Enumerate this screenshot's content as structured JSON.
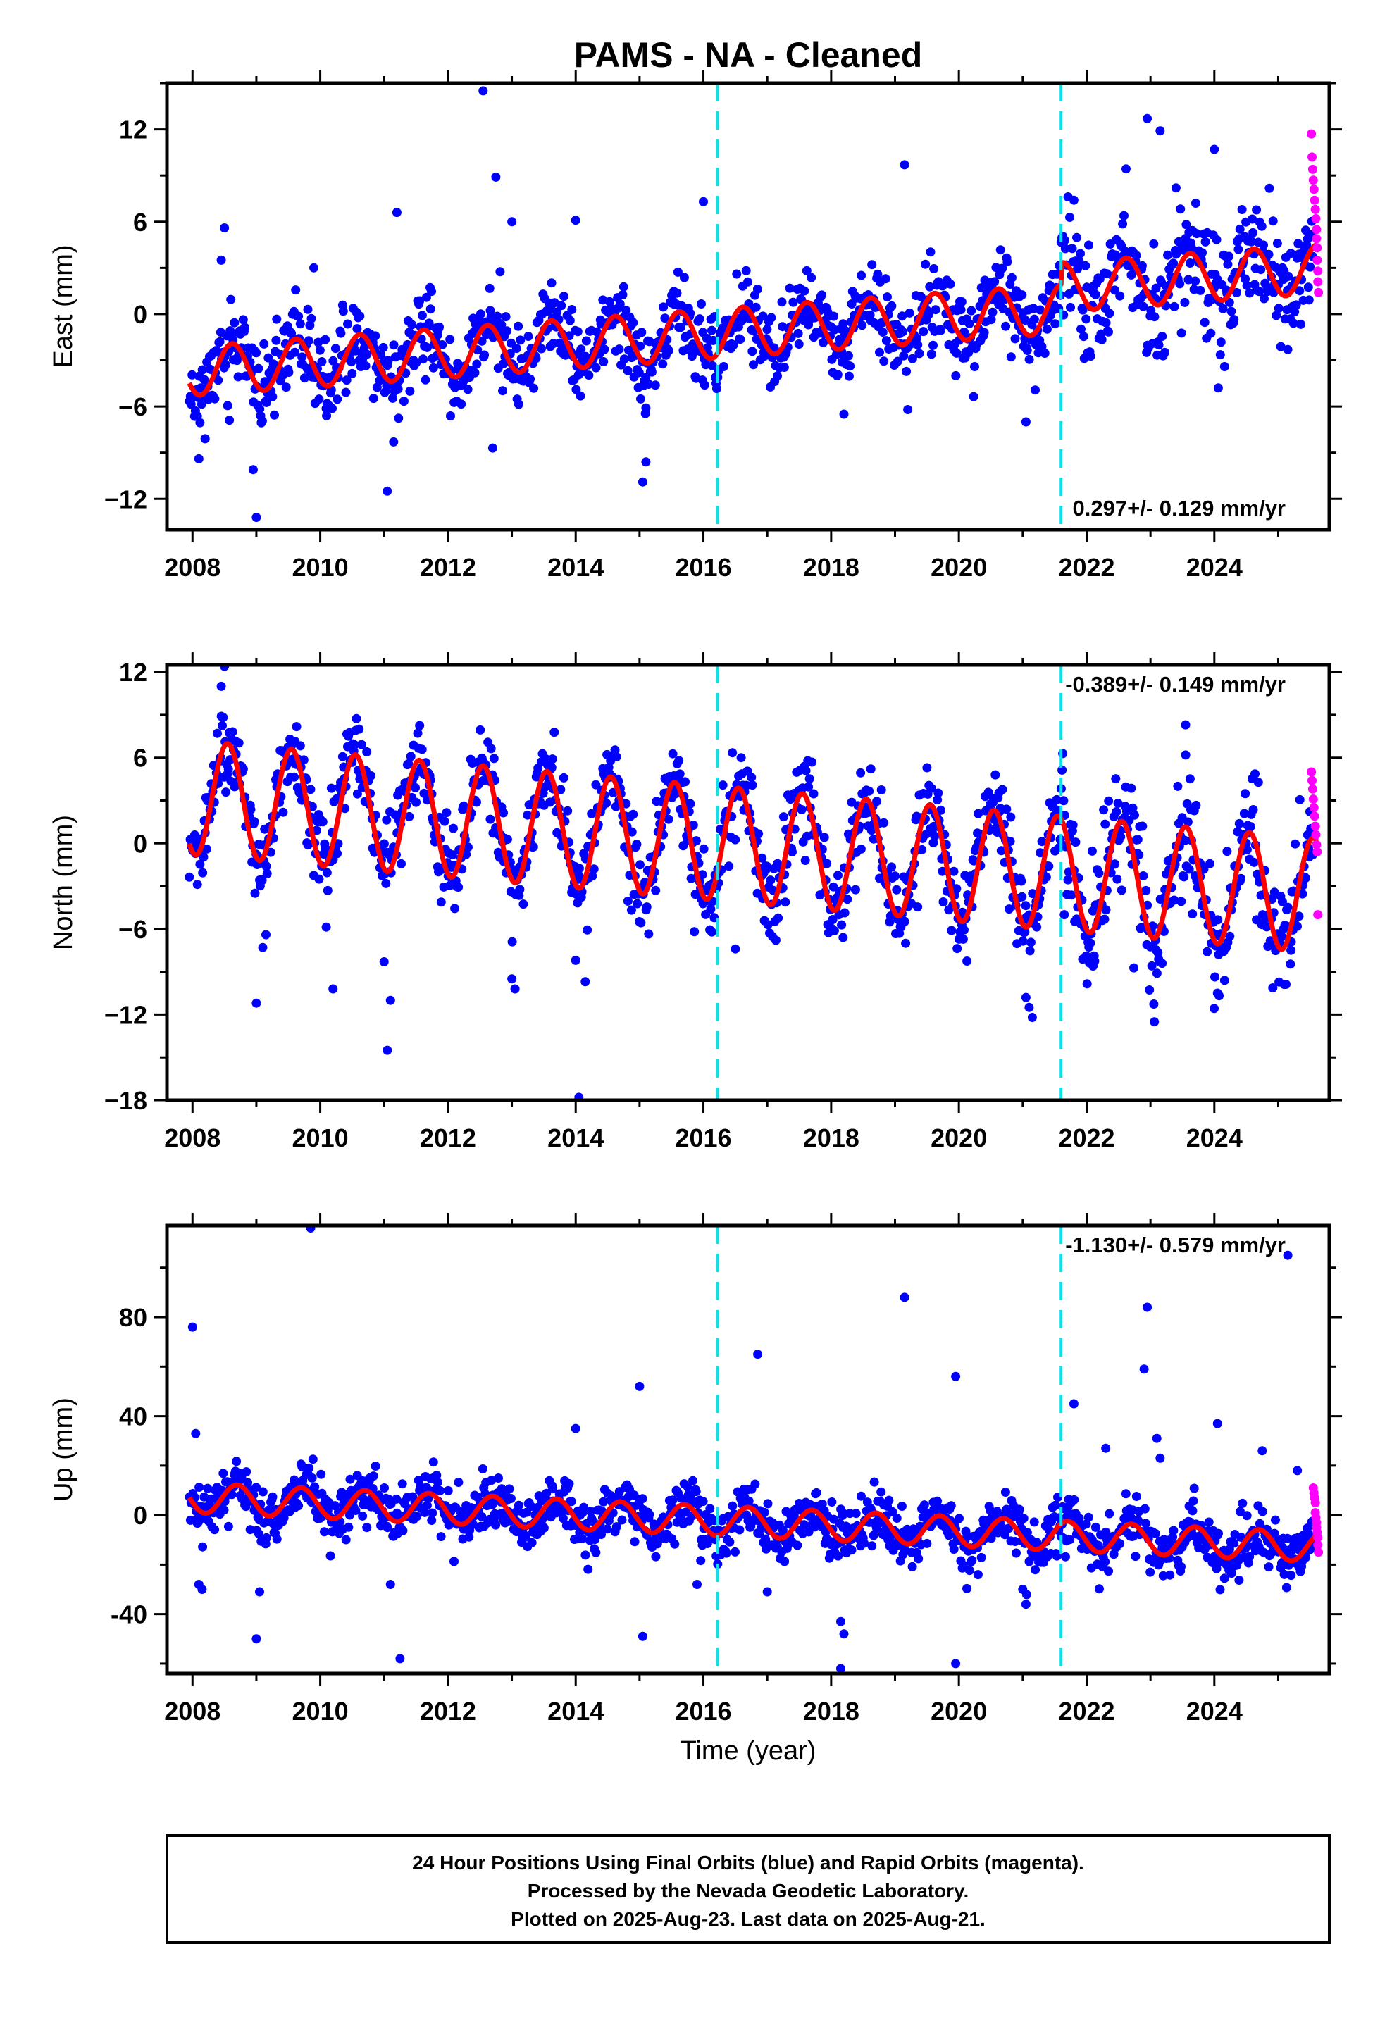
{
  "figure": {
    "title": "PAMS  - NA - Cleaned",
    "xlabel": "Time (year)",
    "caption": [
      "24 Hour Positions Using Final Orbits (blue) and Rapid Orbits (magenta).",
      "Processed by the Nevada Geodetic Laboratory.",
      "Plotted on 2025-Aug-23. Last data on 2025-Aug-21."
    ]
  },
  "colors": {
    "final_orbits": "#0000ff",
    "rapid_orbits": "#ff00ff",
    "model": "#ff0000",
    "event_lines": "#00e5ee",
    "frame": "#000000"
  },
  "chart_data": [
    {
      "type": "scatter",
      "component": "East",
      "ylabel": "East (mm)",
      "xlim": [
        2007.6,
        2025.8
      ],
      "ylim": [
        -14,
        15
      ],
      "xticks": [
        "2008",
        "2010",
        "2012",
        "2014",
        "2016",
        "2018",
        "2020",
        "2022",
        "2024"
      ],
      "xtick_values": [
        2008,
        2010,
        2012,
        2014,
        2016,
        2018,
        2020,
        2022,
        2024
      ],
      "yticks": [
        "12",
        "6",
        "0",
        "−6",
        "−12"
      ],
      "ytick_values": [
        12,
        6,
        0,
        -6,
        -12
      ],
      "rate_label": "0.297+/- 0.129 mm/yr",
      "rate_position": "bottom-right",
      "event_lines": [
        2016.22,
        2021.6
      ],
      "model": {
        "offset_start": -3.7,
        "trend_mm_per_yr": 0.297,
        "annual_amplitude": 1.6,
        "phase_peak": 0.62,
        "steps": [
          {
            "at": 2021.6,
            "size": 1.4
          }
        ]
      },
      "scatter": {
        "std": 1.3,
        "seed": 11,
        "n": 1300,
        "spread_after_2021": 1.5
      },
      "outliers": [
        [
          2008.45,
          3.5
        ],
        [
          2008.5,
          5.6
        ],
        [
          2008.1,
          -9.4
        ],
        [
          2009.0,
          -13.2
        ],
        [
          2008.95,
          -10.1
        ],
        [
          2009.9,
          3.0
        ],
        [
          2010.1,
          -6.6
        ],
        [
          2011.05,
          -11.5
        ],
        [
          2011.2,
          6.6
        ],
        [
          2011.15,
          -8.3
        ],
        [
          2012.55,
          14.5
        ],
        [
          2012.7,
          -8.7
        ],
        [
          2012.75,
          8.9
        ],
        [
          2013.0,
          6.0
        ],
        [
          2014.0,
          6.1
        ],
        [
          2015.1,
          -9.6
        ],
        [
          2015.05,
          -10.9
        ],
        [
          2015.1,
          -6.1
        ],
        [
          2016.0,
          7.3
        ],
        [
          2018.2,
          -6.5
        ],
        [
          2019.15,
          9.7
        ],
        [
          2019.2,
          -6.2
        ],
        [
          2021.05,
          -7.0
        ],
        [
          2021.8,
          7.4
        ],
        [
          2022.95,
          12.7
        ],
        [
          2023.15,
          11.9
        ],
        [
          2024.0,
          10.7
        ],
        [
          2023.4,
          8.2
        ],
        [
          2025.15,
          -2.3
        ]
      ],
      "rapid": [
        [
          2025.52,
          11.7
        ],
        [
          2025.53,
          10.2
        ],
        [
          2025.54,
          9.4
        ],
        [
          2025.55,
          8.7
        ],
        [
          2025.56,
          8.1
        ],
        [
          2025.57,
          7.4
        ],
        [
          2025.58,
          6.8
        ],
        [
          2025.59,
          6.2
        ],
        [
          2025.6,
          5.5
        ],
        [
          2025.6,
          4.9
        ],
        [
          2025.61,
          4.3
        ],
        [
          2025.61,
          3.5
        ],
        [
          2025.62,
          2.8
        ],
        [
          2025.62,
          2.1
        ],
        [
          2025.63,
          1.4
        ]
      ]
    },
    {
      "type": "scatter",
      "component": "North",
      "ylabel": "North (mm)",
      "xlim": [
        2007.6,
        2025.8
      ],
      "ylim": [
        -18,
        12.5
      ],
      "xticks": [
        "2008",
        "2010",
        "2012",
        "2014",
        "2016",
        "2018",
        "2020",
        "2022",
        "2024"
      ],
      "xtick_values": [
        2008,
        2010,
        2012,
        2014,
        2016,
        2018,
        2020,
        2022,
        2024
      ],
      "yticks": [
        "12",
        "6",
        "0",
        "−6",
        "−12",
        "−18"
      ],
      "ytick_values": [
        12,
        6,
        0,
        -6,
        -12,
        -18
      ],
      "rate_label": "-0.389+/- 0.149 mm/yr",
      "rate_position": "top-right",
      "event_lines": [
        2016.22,
        2021.6
      ],
      "model": {
        "offset_start": 3.2,
        "trend_mm_per_yr": -0.389,
        "annual_amplitude": 4.0,
        "phase_peak": 0.55,
        "steps": []
      },
      "scatter": {
        "std": 1.5,
        "seed": 23,
        "n": 1300,
        "spread_after_2021": 1.5
      },
      "outliers": [
        [
          2008.5,
          12.4
        ],
        [
          2008.45,
          11.0
        ],
        [
          2009.0,
          -11.2
        ],
        [
          2009.1,
          -7.3
        ],
        [
          2009.15,
          -6.4
        ],
        [
          2010.2,
          -10.2
        ],
        [
          2011.05,
          -14.5
        ],
        [
          2011.1,
          -11.0
        ],
        [
          2011.0,
          -8.3
        ],
        [
          2013.0,
          -9.5
        ],
        [
          2013.05,
          -10.2
        ],
        [
          2014.05,
          -17.8
        ],
        [
          2014.15,
          -9.7
        ],
        [
          2014.0,
          -8.2
        ],
        [
          2016.5,
          -7.4
        ],
        [
          2021.1,
          -11.5
        ],
        [
          2021.15,
          -12.2
        ],
        [
          2021.05,
          -10.8
        ],
        [
          2021.65,
          -5.0
        ],
        [
          2022.1,
          -8.6
        ],
        [
          2024.05,
          -10.5
        ],
        [
          2025.2,
          -7.5
        ],
        [
          2023.55,
          8.3
        ]
      ],
      "rapid": [
        [
          2025.52,
          5.0
        ],
        [
          2025.53,
          4.4
        ],
        [
          2025.54,
          3.8
        ],
        [
          2025.55,
          3.1
        ],
        [
          2025.56,
          2.5
        ],
        [
          2025.57,
          1.9
        ],
        [
          2025.58,
          1.2
        ],
        [
          2025.59,
          0.6
        ],
        [
          2025.6,
          -0.1
        ],
        [
          2025.61,
          -0.6
        ],
        [
          2025.62,
          -5.0
        ]
      ]
    },
    {
      "type": "scatter",
      "component": "Up",
      "ylabel": "Up (mm)",
      "xlim": [
        2007.6,
        2025.8
      ],
      "ylim": [
        -64,
        117
      ],
      "xticks": [
        "2008",
        "2010",
        "2012",
        "2014",
        "2016",
        "2018",
        "2020",
        "2022",
        "2024"
      ],
      "xtick_values": [
        2008,
        2010,
        2012,
        2014,
        2016,
        2018,
        2020,
        2022,
        2024
      ],
      "yticks": [
        "80",
        "40",
        "0",
        "-40"
      ],
      "ytick_values": [
        80,
        40,
        0,
        -40
      ],
      "rate_label": "-1.130+/- 0.579 mm/yr",
      "rate_position": "top-right",
      "event_lines": [
        2016.22,
        2021.6
      ],
      "model": {
        "offset_start": 7.0,
        "trend_mm_per_yr": -1.13,
        "annual_amplitude": 6.0,
        "phase_peak": 0.7,
        "steps": []
      },
      "scatter": {
        "std": 5.5,
        "seed": 37,
        "n": 1300,
        "spread_after_2021": 1.0
      },
      "outliers": [
        [
          2009.85,
          116.0
        ],
        [
          2008.0,
          76.0
        ],
        [
          2008.05,
          33.0
        ],
        [
          2008.1,
          -28.0
        ],
        [
          2008.15,
          -30.0
        ],
        [
          2009.0,
          -50.0
        ],
        [
          2009.05,
          -31.0
        ],
        [
          2011.1,
          -28.0
        ],
        [
          2011.25,
          -58.0
        ],
        [
          2014.0,
          35.0
        ],
        [
          2015.0,
          52.0
        ],
        [
          2015.05,
          -49.0
        ],
        [
          2015.9,
          -28.0
        ],
        [
          2016.85,
          65.0
        ],
        [
          2017.0,
          -31.0
        ],
        [
          2018.15,
          -43.0
        ],
        [
          2018.2,
          -48.0
        ],
        [
          2018.15,
          -62.0
        ],
        [
          2019.15,
          88.0
        ],
        [
          2019.95,
          56.0
        ],
        [
          2019.95,
          -60.0
        ],
        [
          2021.0,
          -30.0
        ],
        [
          2021.05,
          -36.0
        ],
        [
          2021.8,
          45.0
        ],
        [
          2022.3,
          27.0
        ],
        [
          2022.9,
          59.0
        ],
        [
          2022.95,
          84.0
        ],
        [
          2023.1,
          31.0
        ],
        [
          2023.15,
          23.0
        ],
        [
          2024.05,
          37.0
        ],
        [
          2025.15,
          105.0
        ],
        [
          2025.3,
          18.0
        ],
        [
          2024.75,
          26.0
        ]
      ],
      "rapid": [
        [
          2025.55,
          11.0
        ],
        [
          2025.56,
          9.0
        ],
        [
          2025.57,
          7.0
        ],
        [
          2025.58,
          5.0
        ],
        [
          2025.58,
          1.0
        ],
        [
          2025.59,
          -1.0
        ],
        [
          2025.6,
          -3.0
        ],
        [
          2025.6,
          -5.0
        ],
        [
          2025.61,
          -7.0
        ],
        [
          2025.62,
          -9.0
        ],
        [
          2025.62,
          -12.0
        ],
        [
          2025.63,
          -15.0
        ]
      ]
    }
  ]
}
